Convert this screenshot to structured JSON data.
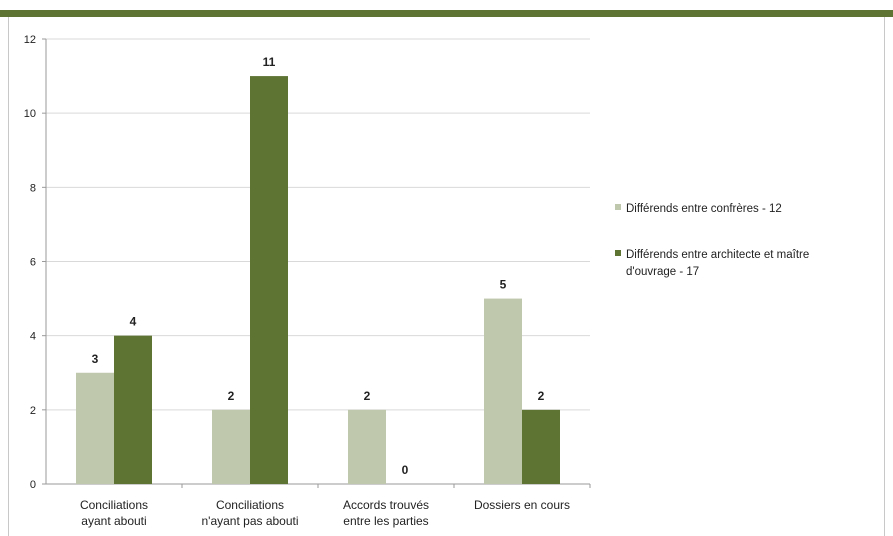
{
  "chart_data": {
    "type": "bar",
    "categories": [
      [
        "Conciliations",
        "ayant abouti"
      ],
      [
        "Conciliations",
        "n'ayant pas abouti"
      ],
      [
        "Accords trouvés",
        "entre les parties"
      ],
      [
        "Dossiers en cours"
      ]
    ],
    "series": [
      {
        "name": [
          "Différends entre confrères - 12"
        ],
        "values": [
          3,
          2,
          2,
          5
        ],
        "color": "#bfc8ad"
      },
      {
        "name": [
          "Différends entre architecte et maître",
          "d'ouvrage - 17"
        ],
        "values": [
          4,
          11,
          0,
          2
        ],
        "color": "#5e7433"
      }
    ],
    "ylim": [
      0,
      12
    ],
    "yticks": [
      0,
      2,
      4,
      6,
      8,
      10,
      12
    ],
    "grid": true,
    "legend": "right"
  },
  "colors": {
    "accent_bar": "#5e7433",
    "gridline": "#d9d9d9"
  }
}
